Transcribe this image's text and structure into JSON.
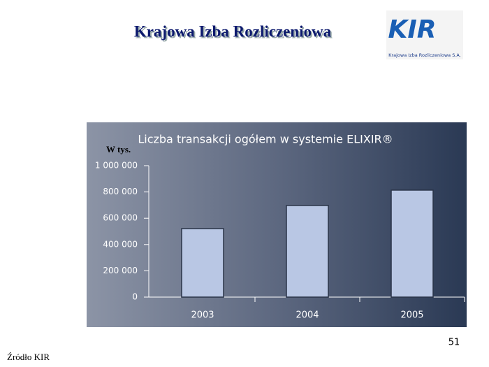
{
  "header": {
    "title": "Krajowa Izba Rozliczeniowa"
  },
  "logo": {
    "mark": "KIR",
    "caption": "Krajowa Izba Rozliczeniowa S.A."
  },
  "chart_data": {
    "type": "bar",
    "title": "Liczba transakcji ogółem w systemie ELIXIR®",
    "y_label": "W tys.",
    "categories": [
      "2003",
      "2004",
      "2005"
    ],
    "values": [
      521000,
      697000,
      814000
    ],
    "color": "#b9c7e4",
    "ylim": [
      0,
      1000000
    ],
    "yticks": [
      0,
      {
        "value": 200000,
        "label": "200 000"
      },
      {
        "value": 400000,
        "label": "400 000"
      },
      {
        "value": 600000,
        "label": "600 000"
      },
      {
        "value": 800000,
        "label": "800 000"
      },
      {
        "value": 1000000,
        "label": "1 000 000"
      }
    ],
    "grid": false
  },
  "footer": {
    "page_number": "51",
    "source": "Źródło KIR"
  }
}
